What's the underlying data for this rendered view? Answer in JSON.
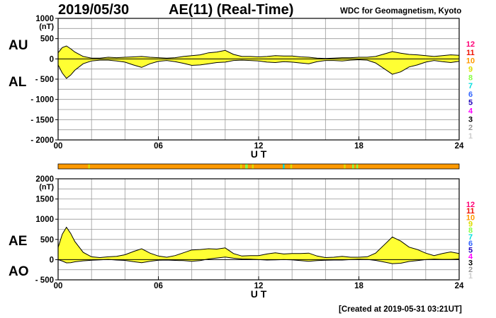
{
  "header": {
    "date": "2019/05/30",
    "title": "AE(11) (Real-Time)",
    "source": "WDC for Geomagnetism, Kyoto"
  },
  "footer": {
    "created": "[Created at 2019-05-31 03:21UT]"
  },
  "colors": {
    "fill": "#ffff33",
    "grid": "#999999",
    "station_levels": [
      "#cccccc",
      "#999999",
      "#000000",
      "#ff00ff",
      "#2200bb",
      "#3366ff",
      "#00dddd",
      "#88ff44",
      "#dddd00",
      "#ff9900",
      "#ee1100",
      "#ff0077"
    ]
  },
  "chart_data": [
    {
      "type": "area",
      "panel": "AU/AL",
      "series_labels": [
        "AU",
        "AL"
      ],
      "unit_label": "(nT)",
      "xlabel": "U T",
      "xlim": [
        0,
        24
      ],
      "x_ticks": [
        "00",
        "06",
        "12",
        "18",
        "24"
      ],
      "x_tick_values": [
        0,
        6,
        12,
        18,
        24
      ],
      "ylim": [
        -2000,
        1000
      ],
      "y_ticks": [
        "1000",
        "500",
        "0",
        "- 500",
        "- 1000",
        "- 1500",
        "- 2000"
      ],
      "y_tick_values": [
        1000,
        500,
        0,
        -500,
        -1000,
        -1500,
        -2000
      ],
      "x": [
        0,
        0.25,
        0.5,
        0.75,
        1,
        1.5,
        2,
        2.5,
        3,
        3.5,
        4,
        4.5,
        5,
        5.5,
        6,
        6.5,
        7,
        7.5,
        8,
        8.5,
        9,
        9.5,
        10,
        10.5,
        11,
        11.5,
        12,
        12.5,
        13,
        13.5,
        14,
        14.5,
        15,
        15.5,
        16,
        16.5,
        17,
        17.5,
        18,
        18.5,
        19,
        19.5,
        20,
        20.5,
        21,
        21.5,
        22,
        22.5,
        23,
        23.5,
        24
      ],
      "series": [
        {
          "name": "AU",
          "values": [
            150,
            280,
            320,
            250,
            170,
            60,
            20,
            20,
            40,
            30,
            40,
            50,
            60,
            40,
            30,
            20,
            30,
            60,
            80,
            100,
            150,
            170,
            210,
            110,
            60,
            60,
            50,
            60,
            80,
            70,
            70,
            50,
            40,
            20,
            10,
            20,
            30,
            30,
            40,
            40,
            60,
            120,
            180,
            140,
            110,
            100,
            80,
            60,
            80,
            100,
            90
          ]
        },
        {
          "name": "AL",
          "values": [
            -150,
            -350,
            -480,
            -400,
            -280,
            -120,
            -50,
            -30,
            -30,
            -50,
            -80,
            -150,
            -210,
            -120,
            -60,
            -40,
            -70,
            -110,
            -160,
            -150,
            -120,
            -90,
            -80,
            -40,
            -30,
            -40,
            -50,
            -80,
            -90,
            -70,
            -80,
            -100,
            -120,
            -70,
            -40,
            -40,
            -50,
            -30,
            -20,
            -30,
            -100,
            -240,
            -380,
            -320,
            -200,
            -150,
            -80,
            -40,
            -70,
            -90,
            -60
          ]
        }
      ]
    },
    {
      "type": "area",
      "panel": "AE/AO",
      "series_labels": [
        "AE",
        "AO"
      ],
      "unit_label": "(nT)",
      "xlabel": "U T",
      "xlim": [
        0,
        24
      ],
      "x_ticks": [
        "00",
        "06",
        "12",
        "18",
        "24"
      ],
      "x_tick_values": [
        0,
        6,
        12,
        18,
        24
      ],
      "ylim": [
        -500,
        2000
      ],
      "y_ticks": [
        "2000",
        "1500",
        "1000",
        "500",
        "0",
        "- 500"
      ],
      "y_tick_values": [
        2000,
        1500,
        1000,
        500,
        0,
        -500
      ],
      "x": [
        0,
        0.25,
        0.5,
        0.75,
        1,
        1.5,
        2,
        2.5,
        3,
        3.5,
        4,
        4.5,
        5,
        5.5,
        6,
        6.5,
        7,
        7.5,
        8,
        8.5,
        9,
        9.5,
        10,
        10.5,
        11,
        11.5,
        12,
        12.5,
        13,
        13.5,
        14,
        14.5,
        15,
        15.5,
        16,
        16.5,
        17,
        17.5,
        18,
        18.5,
        19,
        19.5,
        20,
        20.5,
        21,
        21.5,
        22,
        22.5,
        23,
        23.5,
        24
      ],
      "series": [
        {
          "name": "AE",
          "values": [
            300,
            630,
            800,
            650,
            450,
            180,
            70,
            50,
            70,
            80,
            120,
            200,
            270,
            160,
            90,
            60,
            100,
            170,
            240,
            250,
            270,
            260,
            290,
            150,
            90,
            100,
            100,
            140,
            170,
            140,
            150,
            150,
            160,
            90,
            50,
            60,
            80,
            60,
            60,
            70,
            160,
            360,
            560,
            460,
            310,
            250,
            160,
            100,
            150,
            190,
            150
          ]
        },
        {
          "name": "AO",
          "values": [
            0,
            -35,
            -80,
            -75,
            -55,
            -30,
            -15,
            -5,
            5,
            -10,
            -20,
            -50,
            -75,
            -40,
            -15,
            -10,
            -20,
            -25,
            -40,
            -25,
            15,
            40,
            65,
            35,
            15,
            10,
            0,
            -10,
            -5,
            0,
            -5,
            -25,
            -40,
            -25,
            -15,
            -10,
            -10,
            0,
            10,
            5,
            -20,
            -60,
            -100,
            -90,
            -45,
            -25,
            0,
            10,
            5,
            5,
            15
          ]
        }
      ]
    }
  ],
  "labels": {
    "au": "AU",
    "al": "AL",
    "ae": "AE",
    "ao": "AO"
  },
  "station_legend": [
    "12",
    "11",
    "10",
    "9",
    "8",
    "7",
    "6",
    "5",
    "4",
    "3",
    "2",
    "1"
  ],
  "station_bar": {
    "default_level": "10",
    "segments": [
      {
        "start": 1.8,
        "end": 1.9,
        "level": "9"
      },
      {
        "start": 10.9,
        "end": 11.0,
        "level": "9"
      },
      {
        "start": 11.2,
        "end": 11.35,
        "level": "8"
      },
      {
        "start": 11.6,
        "end": 11.7,
        "level": "9"
      },
      {
        "start": 13.45,
        "end": 13.55,
        "level": "7"
      },
      {
        "start": 13.9,
        "end": 14.0,
        "level": "9"
      },
      {
        "start": 17.1,
        "end": 17.2,
        "level": "9"
      },
      {
        "start": 17.6,
        "end": 17.7,
        "level": "8"
      },
      {
        "start": 17.85,
        "end": 17.95,
        "level": "8"
      }
    ]
  }
}
